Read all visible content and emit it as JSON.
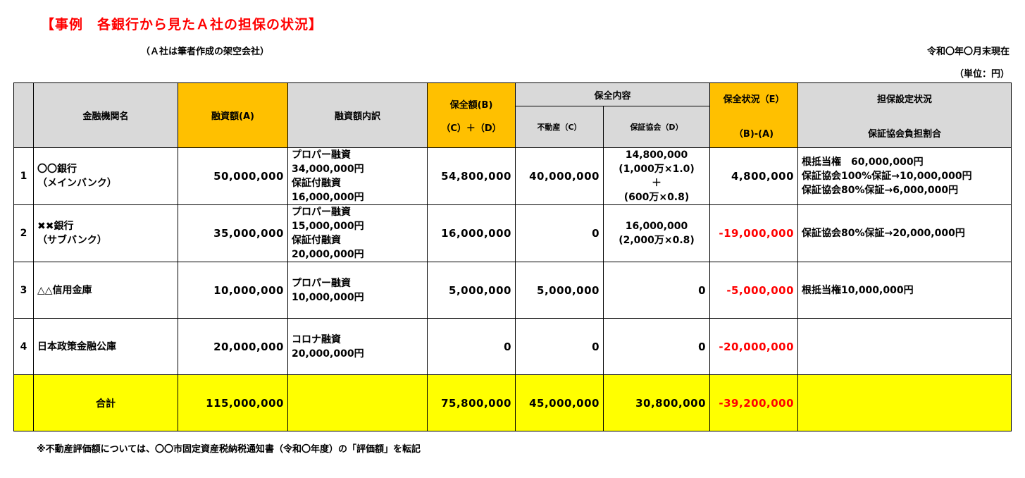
{
  "title": "【事例　各銀行から見たＡ社の担保の状況】",
  "subnote": "（Ａ社は筆者作成の架空会社）",
  "as_of": "令和〇年〇月末現在",
  "unit": "（単位：円）",
  "headers": {
    "bank": "金融機関名",
    "loan": "融資額(A)",
    "loan_breakdown": "融資額内訳",
    "coverage_line1": "保全額(B)",
    "coverage_line2": "（C）＋（D）",
    "coverage_content": "保全内容",
    "real_estate": "不動産（C）",
    "guarantee": "保証協会（D）",
    "status_line1": "保全状況（E）",
    "status_line2": "（B)-(A)",
    "collateral_line1": "担保設定状況",
    "collateral_line2": "保証協会負担割合"
  },
  "rows": [
    {
      "no": "1",
      "bank": [
        "〇〇銀行",
        "（メインバンク）"
      ],
      "loan": "50,000,000",
      "breakdown": [
        "プロパー融資",
        "34,000,000円",
        "保証付融資",
        "16,000,000円"
      ],
      "coverage": "54,800,000",
      "real_estate": "40,000,000",
      "guarantee": [
        "14,800,000",
        "(1,000万×1.0)",
        "＋",
        "(600万×0.8)"
      ],
      "status": "4,800,000",
      "collateral": [
        "根抵当権　60,000,000円",
        "保証協会100%保証→10,000,000円",
        "保証協会80%保証→6,000,000円"
      ]
    },
    {
      "no": "2",
      "bank": [
        "✖✖銀行",
        "（サブバンク）"
      ],
      "loan": "35,000,000",
      "breakdown": [
        "プロパー融資",
        "15,000,000円",
        "保証付融資",
        "20,000,000円"
      ],
      "coverage": "16,000,000",
      "real_estate": "0",
      "guarantee": [
        "16,000,000",
        "(2,000万×0.8)"
      ],
      "status": "-19,000,000",
      "collateral": [
        "保証協会80%保証→20,000,000円"
      ]
    },
    {
      "no": "3",
      "bank": [
        "△△信用金庫"
      ],
      "loan": "10,000,000",
      "breakdown": [
        "プロパー融資",
        "10,000,000円"
      ],
      "coverage": "5,000,000",
      "real_estate": "5,000,000",
      "guarantee": [
        "0"
      ],
      "status": "-5,000,000",
      "collateral": [
        "根抵当権10,000,000円"
      ]
    },
    {
      "no": "4",
      "bank": [
        "日本政策金融公庫"
      ],
      "loan": "20,000,000",
      "breakdown": [
        "コロナ融資",
        "20,000,000円"
      ],
      "coverage": "0",
      "real_estate": "0",
      "guarantee": [
        "0"
      ],
      "status": "-20,000,000",
      "collateral": []
    }
  ],
  "total": {
    "label": "合計",
    "loan": "115,000,000",
    "coverage": "75,800,000",
    "real_estate": "45,000,000",
    "guarantee": "30,800,000",
    "status": "-39,200,000"
  },
  "footnote": "※不動産評価額については、〇〇市固定資産税納税通知書（令和〇年度）の「評価額」を転記",
  "colors": {
    "title": "#ff0000",
    "header_gray": "#d9d9d9",
    "header_orange": "#ffc000",
    "total_yellow": "#ffff00",
    "negative": "#ff0000"
  }
}
